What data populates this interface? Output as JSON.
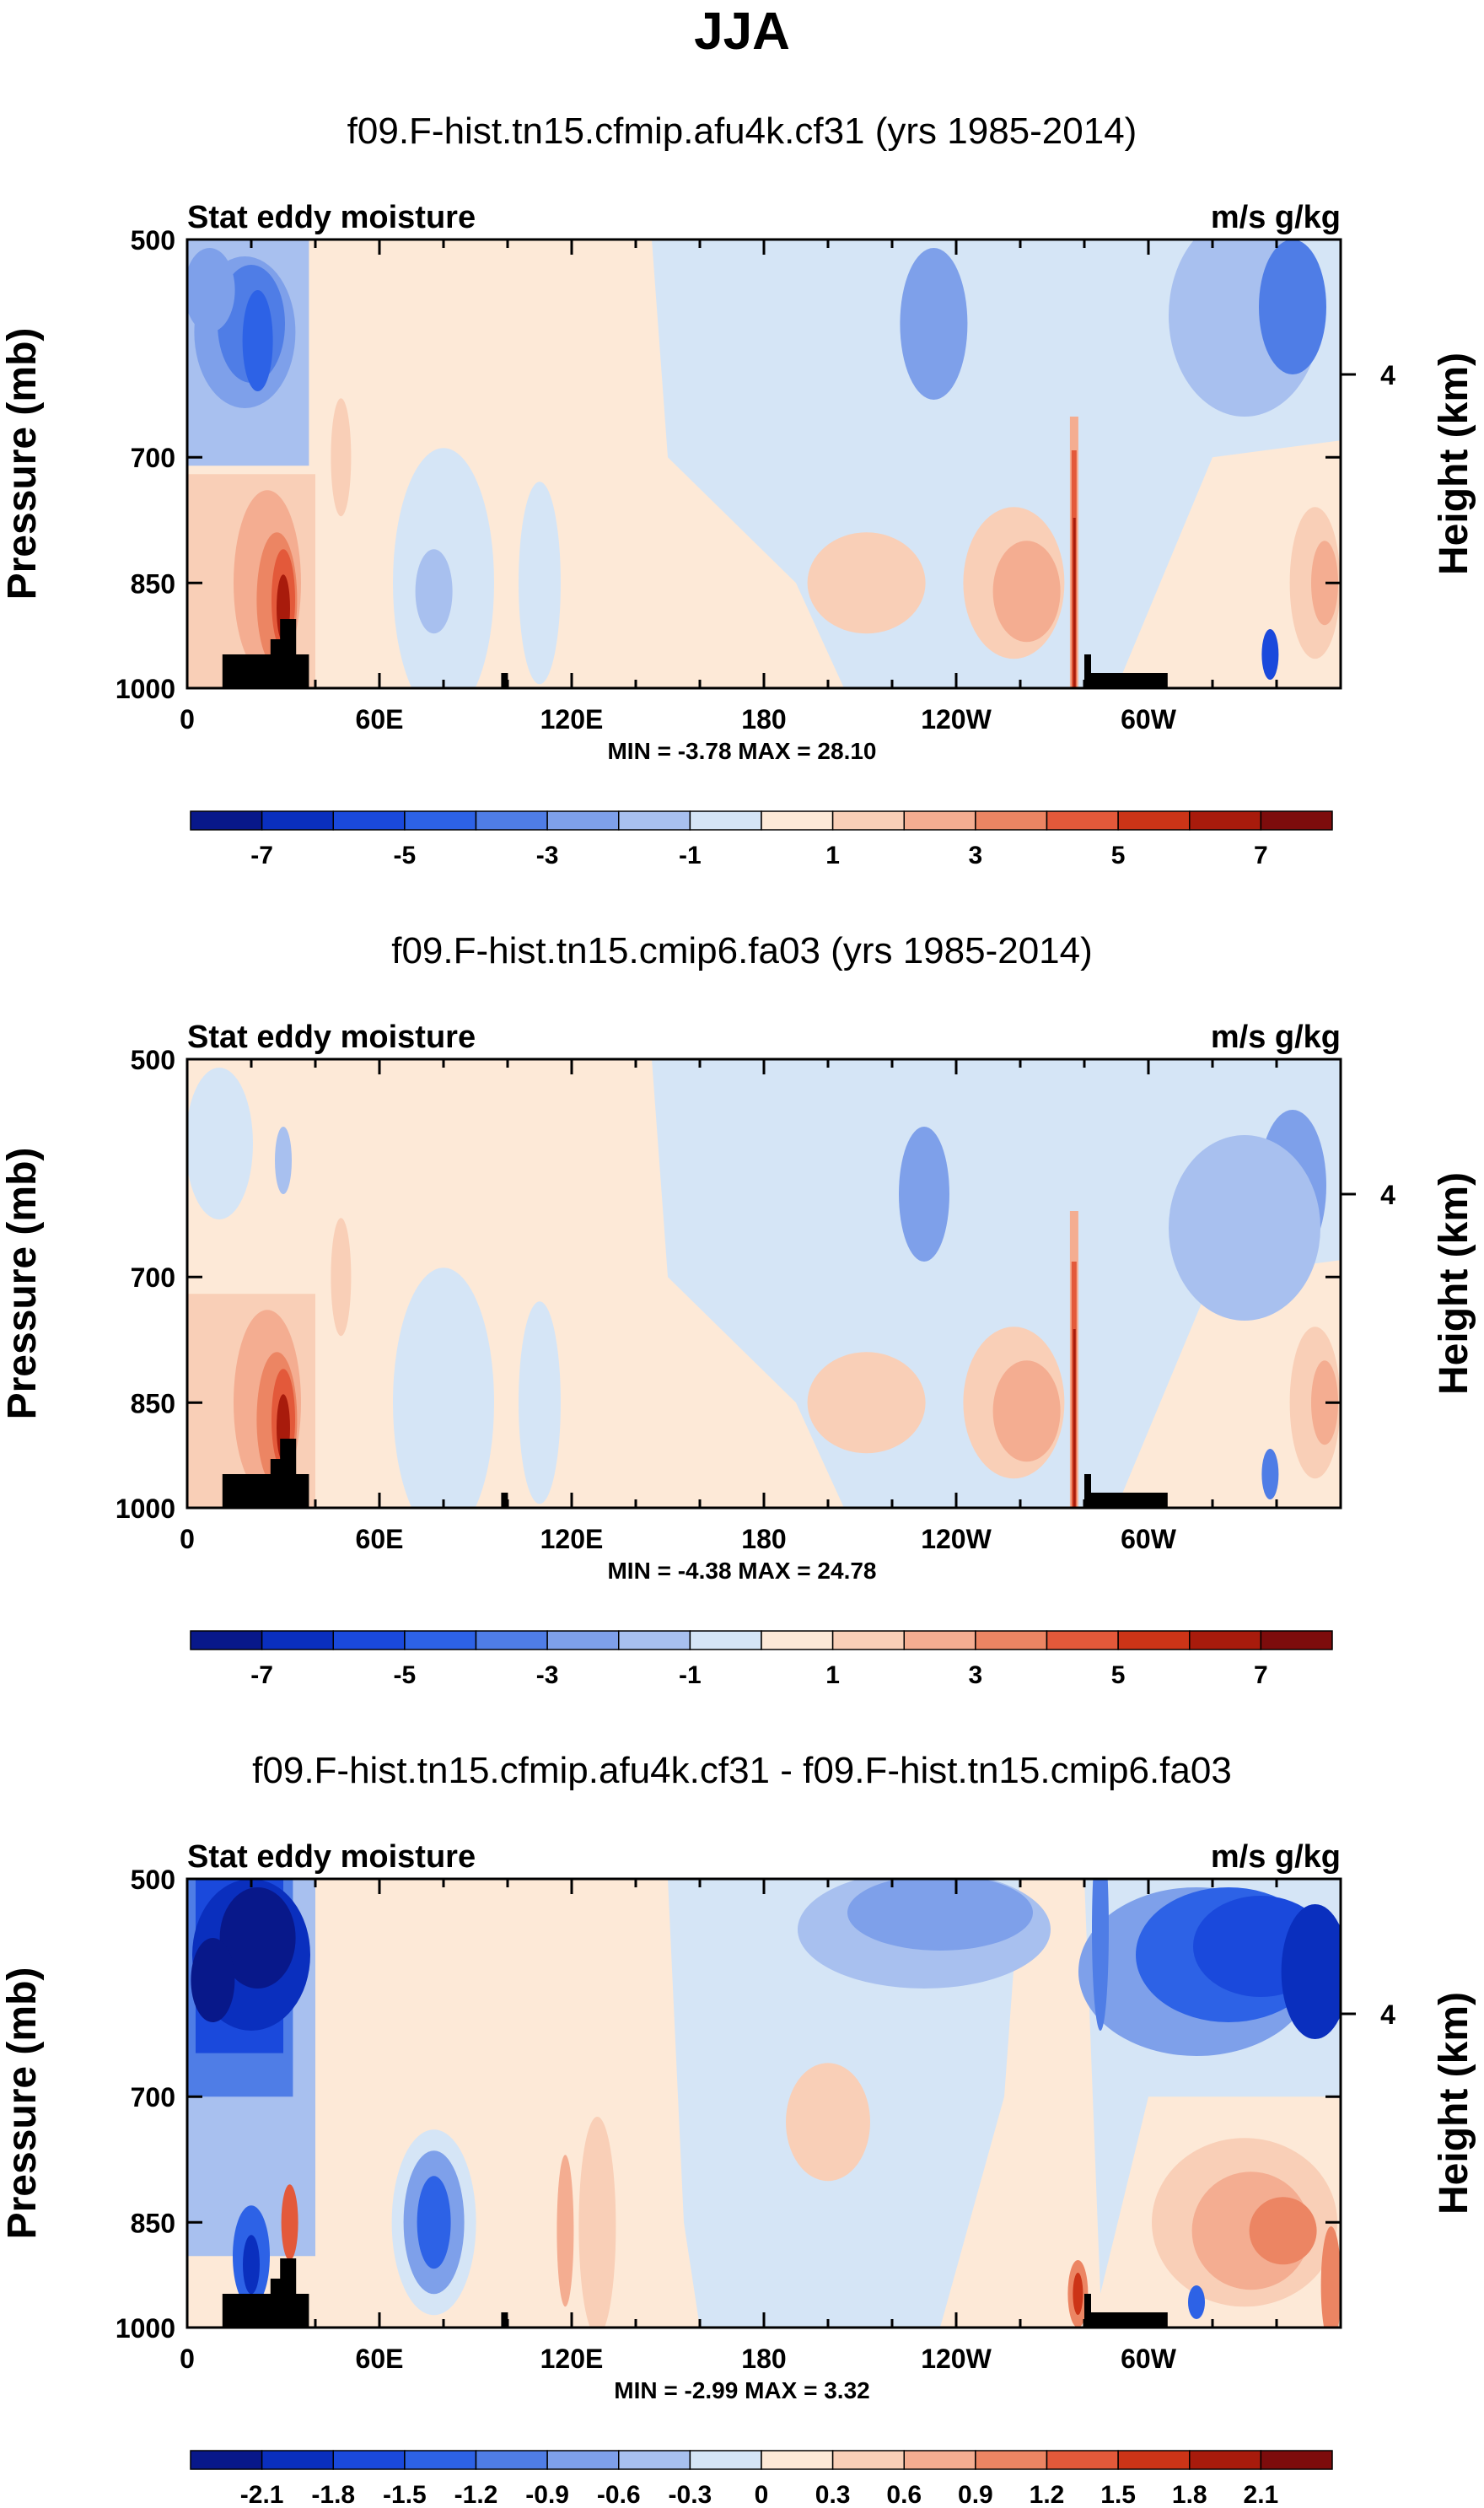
{
  "figure": {
    "title": "JJA"
  },
  "colors": {
    "neg": [
      "#08188a",
      "#0a2fbe",
      "#1a49dc",
      "#2d62e6",
      "#4f7de6",
      "#7ea0ea",
      "#a8c0ef",
      "#d5e5f6"
    ],
    "pos": [
      "#fde9d7",
      "#f9cfb7",
      "#f4ad91",
      "#ec8563",
      "#e3593a",
      "#cc3417",
      "#a81b0c",
      "#7d0c0c"
    ],
    "land": "#000000"
  },
  "chart_data": [
    {
      "type": "contour",
      "title": "f09.F-hist.tn15.cfmip.afu4k.cf31 (yrs 1985-2014)",
      "left_label": "Stat eddy moisture",
      "right_label": "m/s g/kg",
      "ylabel": "Pressure (mb)",
      "ylabel_right": "Height (km)",
      "y_ticks": [
        "500",
        "700",
        "850",
        "1000"
      ],
      "y_right_ticks": [
        "4"
      ],
      "x_ticks": [
        "0",
        "60E",
        "120E",
        "180",
        "120W",
        "60W"
      ],
      "stats": "MIN = -3.78  MAX = 28.10",
      "colorbar_labels": [
        "-7",
        "-5",
        "-3",
        "-1",
        "1",
        "3",
        "5",
        "7"
      ],
      "min": -3.78,
      "max": 28.1
    },
    {
      "type": "contour",
      "title": "f09.F-hist.tn15.cmip6.fa03 (yrs 1985-2014)",
      "left_label": "Stat eddy moisture",
      "right_label": "m/s g/kg",
      "ylabel": "Pressure (mb)",
      "ylabel_right": "Height (km)",
      "y_ticks": [
        "500",
        "700",
        "850",
        "1000"
      ],
      "y_right_ticks": [
        "4"
      ],
      "x_ticks": [
        "0",
        "60E",
        "120E",
        "180",
        "120W",
        "60W"
      ],
      "stats": "MIN = -4.38  MAX = 24.78",
      "colorbar_labels": [
        "-7",
        "-5",
        "-3",
        "-1",
        "1",
        "3",
        "5",
        "7"
      ],
      "min": -4.38,
      "max": 24.78
    },
    {
      "type": "contour",
      "title": "f09.F-hist.tn15.cfmip.afu4k.cf31 - f09.F-hist.tn15.cmip6.fa03",
      "left_label": "Stat eddy moisture",
      "right_label": "m/s g/kg",
      "ylabel": "Pressure (mb)",
      "ylabel_right": "Height (km)",
      "y_ticks": [
        "500",
        "700",
        "850",
        "1000"
      ],
      "y_right_ticks": [
        "4"
      ],
      "x_ticks": [
        "0",
        "60E",
        "120E",
        "180",
        "120W",
        "60W"
      ],
      "stats": "MIN = -2.99  MAX = 3.32",
      "colorbar_labels": [
        "-2.1",
        "-1.8",
        "-1.5",
        "-1.2",
        "-0.9",
        "-0.6",
        "-0.3",
        "0",
        "0.3",
        "0.6",
        "0.9",
        "1.2",
        "1.5",
        "1.8",
        "2.1"
      ],
      "min": -2.99,
      "max": 3.32
    }
  ]
}
